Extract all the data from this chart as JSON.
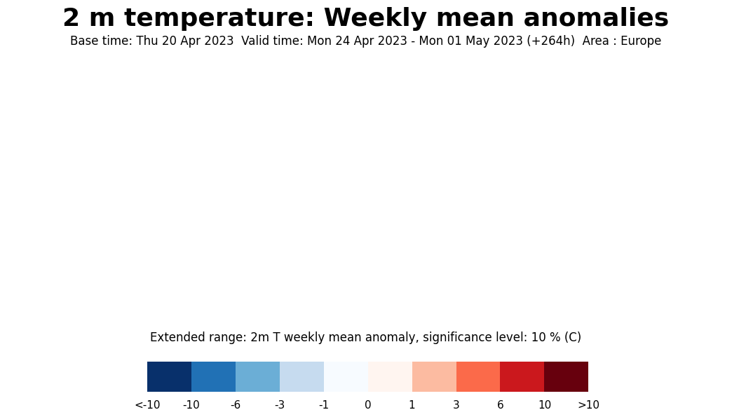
{
  "title": "2 m temperature: Weekly mean anomalies",
  "subtitle": "Base time: Thu 20 Apr 2023  Valid time: Mon 24 Apr 2023 - Mon 01 May 2023 (+264h)  Area : Europe",
  "colorbar_label": "Extended range: 2m T weekly mean anomaly, significance level: 10 % (C)",
  "colorbar_ticks": [
    "<-10",
    "-10",
    "-6",
    "-3",
    "-1",
    "0",
    "1",
    "3",
    "6",
    "10",
    ">10"
  ],
  "colorbar_colors": [
    "#08306b",
    "#2171b5",
    "#6baed6",
    "#c6dbef",
    "#f7fbff",
    "#fff5f0",
    "#fcbba1",
    "#fb6a4a",
    "#cb181d",
    "#67000d",
    "#3d0000"
  ],
  "title_fontsize": 26,
  "subtitle_fontsize": 12,
  "colorbar_label_fontsize": 12,
  "colorbar_tick_fontsize": 11,
  "bg_color": "#ffffff",
  "map_lon_min": -60,
  "map_lon_max": 90,
  "map_lat_min": 25,
  "map_lat_max": 80
}
